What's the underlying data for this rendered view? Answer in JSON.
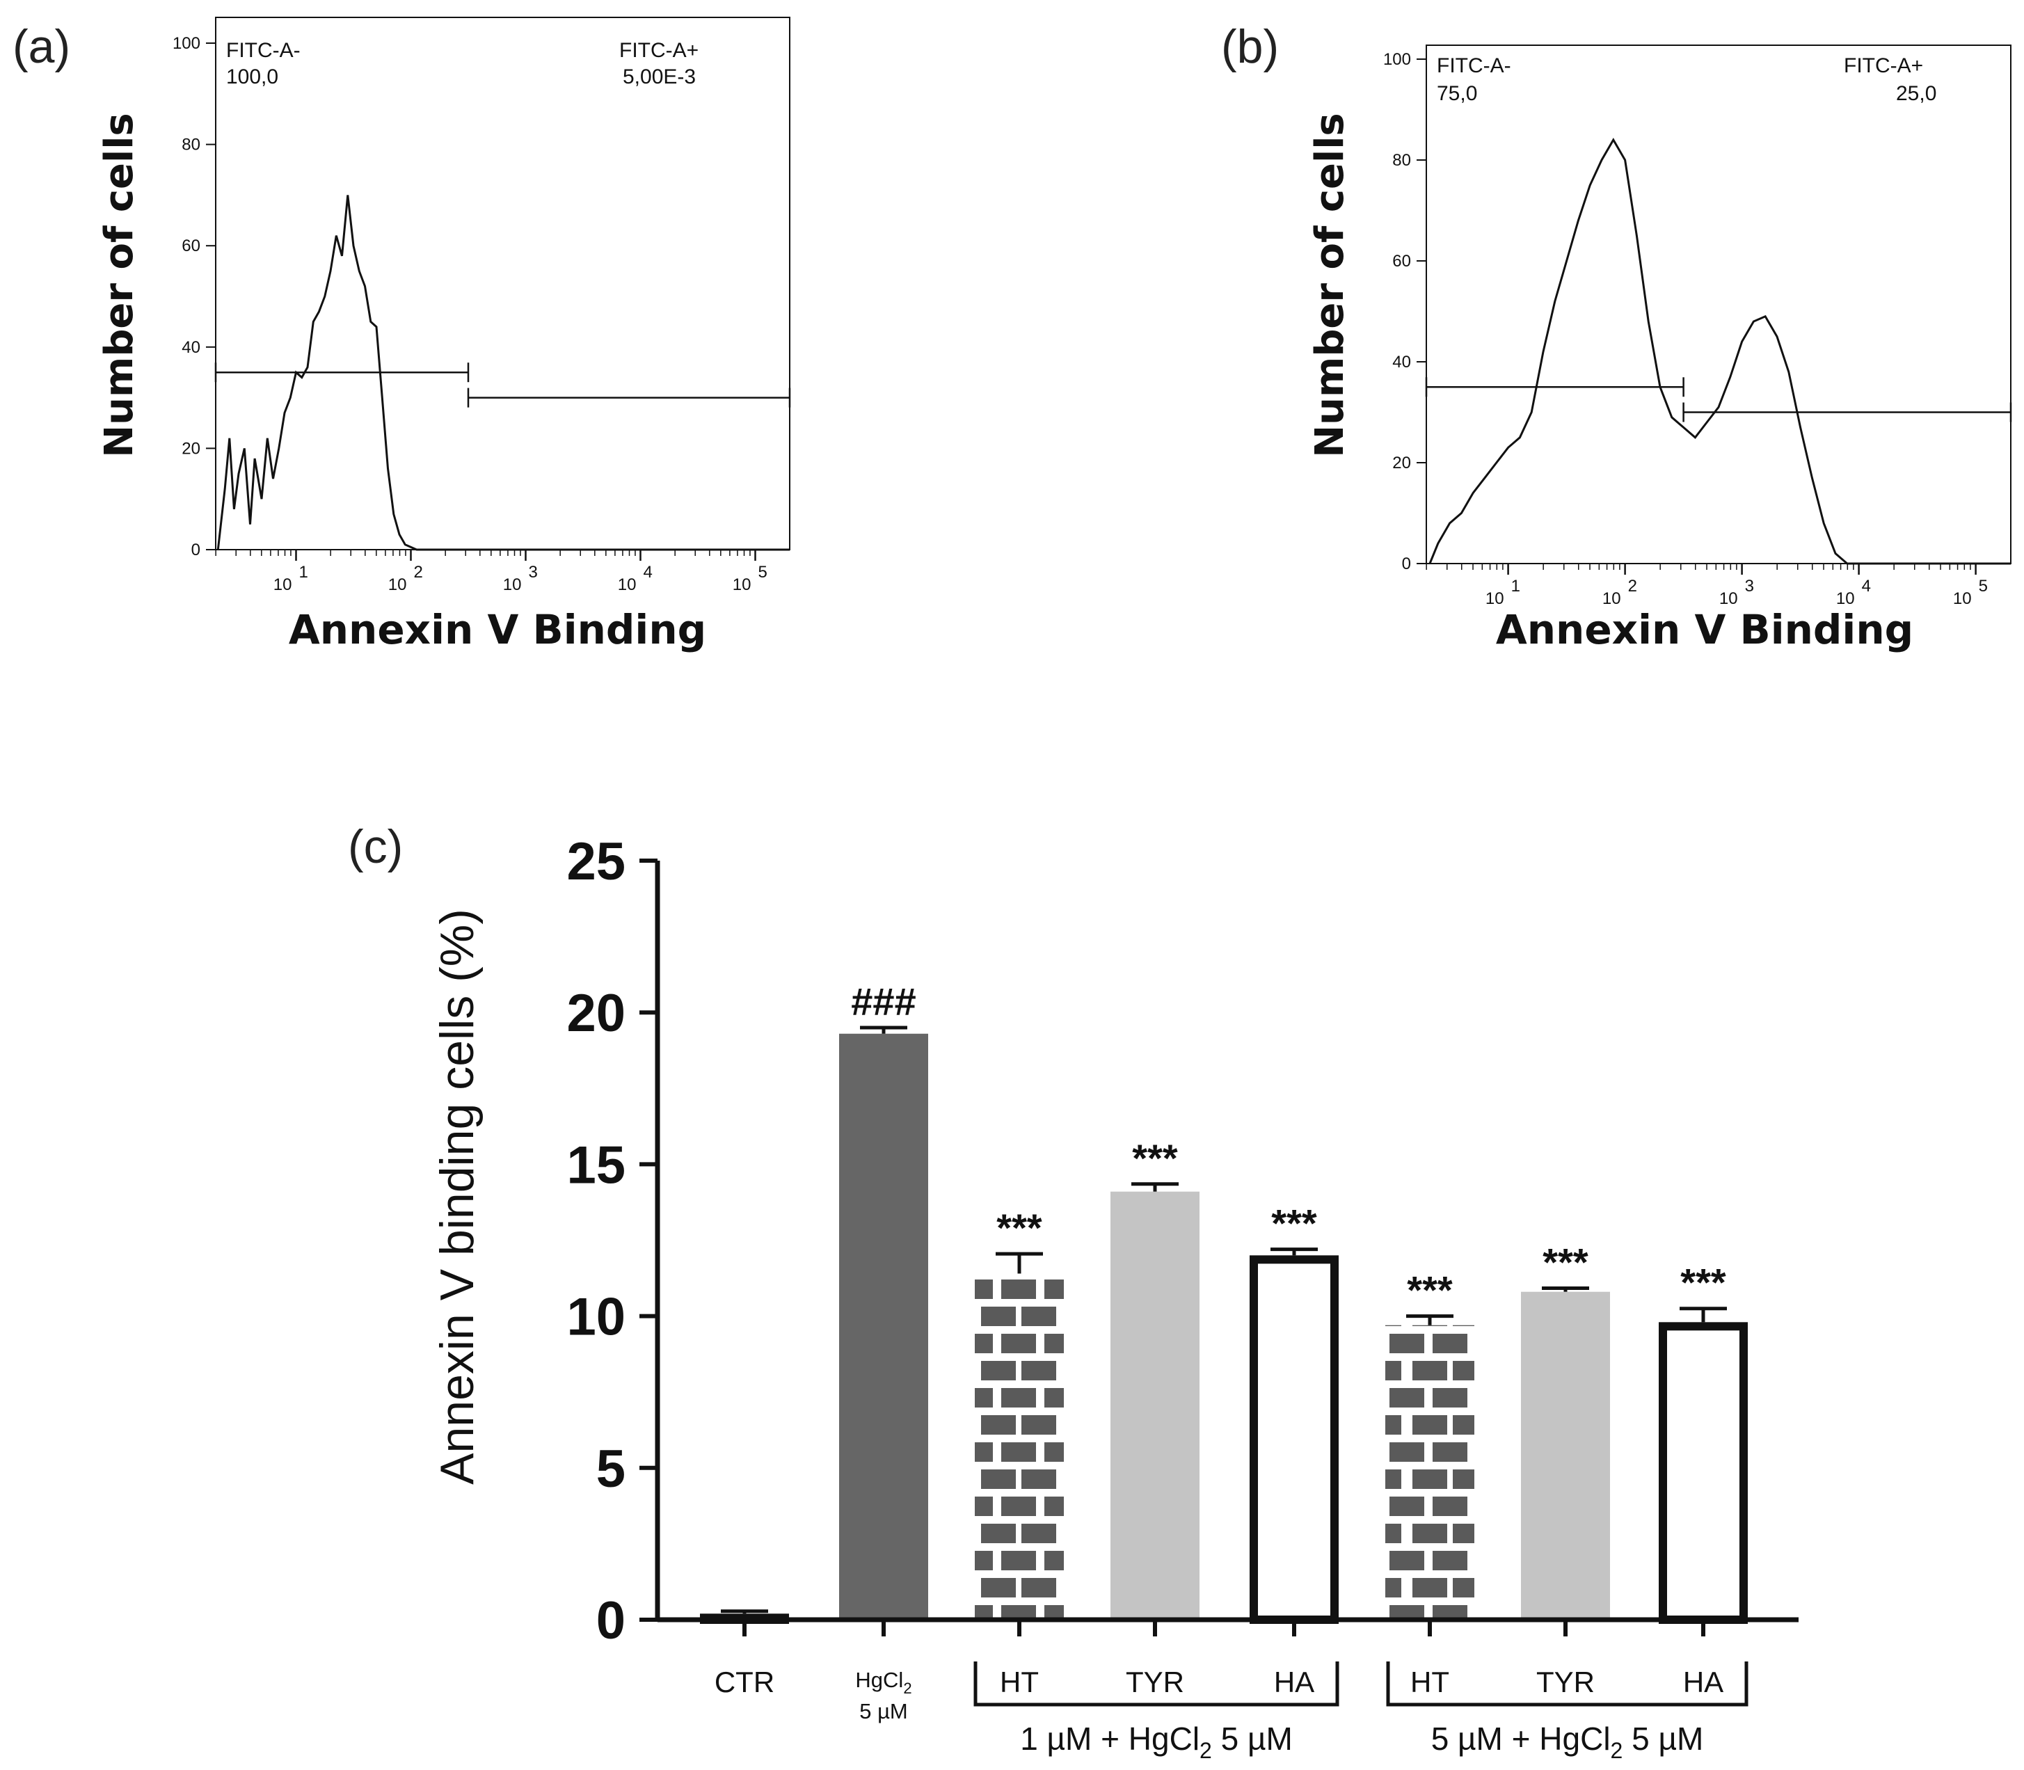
{
  "chart_data": [
    {
      "panel": "(a)",
      "type": "histogram",
      "ylabel": "Number of cells",
      "xlabel": "Annexin V Binding",
      "x_scale": "log",
      "y_ticks": [
        "0",
        "20",
        "40",
        "60",
        "80",
        "100"
      ],
      "x_ticks": [
        {
          "base": "10",
          "exp": "1"
        },
        {
          "base": "10",
          "exp": "2"
        },
        {
          "base": "10",
          "exp": "3"
        },
        {
          "base": "10",
          "exp": "4"
        },
        {
          "base": "10",
          "exp": "5"
        }
      ],
      "ylim": [
        0,
        100
      ],
      "xlim_log10": [
        0.3,
        5.3
      ],
      "gates": [
        {
          "name": "FITC-A-",
          "value": "100,0",
          "from_log10": 0.3,
          "to_log10": 2.5,
          "level": 35
        },
        {
          "name": "FITC-A+",
          "value": "5,00E-3",
          "from_log10": 2.5,
          "to_log10": 5.3,
          "level": 30
        }
      ],
      "curve": [
        [
          0.32,
          0
        ],
        [
          0.38,
          12
        ],
        [
          0.42,
          22
        ],
        [
          0.46,
          8
        ],
        [
          0.5,
          15
        ],
        [
          0.55,
          20
        ],
        [
          0.6,
          5
        ],
        [
          0.64,
          18
        ],
        [
          0.7,
          10
        ],
        [
          0.75,
          22
        ],
        [
          0.8,
          14
        ],
        [
          0.85,
          20
        ],
        [
          0.9,
          27
        ],
        [
          0.95,
          30
        ],
        [
          1.0,
          35
        ],
        [
          1.05,
          34
        ],
        [
          1.1,
          36
        ],
        [
          1.15,
          45
        ],
        [
          1.2,
          47
        ],
        [
          1.25,
          50
        ],
        [
          1.3,
          55
        ],
        [
          1.35,
          62
        ],
        [
          1.4,
          58
        ],
        [
          1.45,
          70
        ],
        [
          1.5,
          60
        ],
        [
          1.55,
          55
        ],
        [
          1.6,
          52
        ],
        [
          1.65,
          45
        ],
        [
          1.7,
          44
        ],
        [
          1.75,
          30
        ],
        [
          1.8,
          16
        ],
        [
          1.85,
          7
        ],
        [
          1.9,
          3
        ],
        [
          1.95,
          1
        ],
        [
          2.05,
          0
        ],
        [
          5.3,
          0
        ]
      ]
    },
    {
      "panel": "(b)",
      "type": "histogram",
      "ylabel": "Number of cells",
      "xlabel": "Annexin V Binding",
      "x_scale": "log",
      "y_ticks": [
        "0",
        "20",
        "40",
        "60",
        "80",
        "100"
      ],
      "x_ticks": [
        {
          "base": "10",
          "exp": "1"
        },
        {
          "base": "10",
          "exp": "2"
        },
        {
          "base": "10",
          "exp": "3"
        },
        {
          "base": "10",
          "exp": "4"
        },
        {
          "base": "10",
          "exp": "5"
        }
      ],
      "ylim": [
        0,
        100
      ],
      "xlim_log10": [
        0.3,
        5.3
      ],
      "gates": [
        {
          "name": "FITC-A-",
          "value": "75,0",
          "from_log10": 0.3,
          "to_log10": 2.5,
          "level": 35
        },
        {
          "name": "FITC-A+",
          "value": "25,0",
          "from_log10": 2.5,
          "to_log10": 5.3,
          "level": 30
        }
      ],
      "curve": [
        [
          0.33,
          0
        ],
        [
          0.4,
          4
        ],
        [
          0.45,
          6
        ],
        [
          0.5,
          8
        ],
        [
          0.6,
          10
        ],
        [
          0.7,
          14
        ],
        [
          0.8,
          17
        ],
        [
          0.9,
          20
        ],
        [
          1.0,
          23
        ],
        [
          1.1,
          25
        ],
        [
          1.2,
          30
        ],
        [
          1.3,
          42
        ],
        [
          1.4,
          52
        ],
        [
          1.5,
          60
        ],
        [
          1.6,
          68
        ],
        [
          1.7,
          75
        ],
        [
          1.8,
          80
        ],
        [
          1.9,
          84
        ],
        [
          2.0,
          80
        ],
        [
          2.1,
          65
        ],
        [
          2.2,
          48
        ],
        [
          2.3,
          35
        ],
        [
          2.4,
          29
        ],
        [
          2.5,
          27
        ],
        [
          2.6,
          25
        ],
        [
          2.7,
          28
        ],
        [
          2.8,
          31
        ],
        [
          2.9,
          37
        ],
        [
          3.0,
          44
        ],
        [
          3.1,
          48
        ],
        [
          3.2,
          49
        ],
        [
          3.3,
          45
        ],
        [
          3.4,
          38
        ],
        [
          3.5,
          27
        ],
        [
          3.6,
          17
        ],
        [
          3.7,
          8
        ],
        [
          3.8,
          2
        ],
        [
          3.9,
          0
        ],
        [
          5.3,
          0
        ]
      ]
    },
    {
      "panel": "(c)",
      "type": "bar",
      "ylabel": "Annexin V binding cells (%)",
      "ylim": [
        0,
        25
      ],
      "y_ticks": [
        "0",
        "5",
        "10",
        "15",
        "20",
        "25"
      ],
      "categories": [
        {
          "label": "CTR",
          "value": 0.2,
          "error": 0.08,
          "fill": "white",
          "sig": ""
        },
        {
          "label": "HgCl",
          "sub": "2",
          "line2": "5 µM",
          "value": 19.3,
          "error": 0.2,
          "fill": "dark",
          "sig": "###"
        },
        {
          "label": "HT",
          "value": 11.4,
          "error": 0.65,
          "fill": "brick",
          "sig": "***"
        },
        {
          "label": "TYR",
          "value": 14.1,
          "error": 0.25,
          "fill": "light",
          "sig": "***"
        },
        {
          "label": "HA",
          "value": 12.0,
          "error": 0.2,
          "fill": "white",
          "sig": "***"
        },
        {
          "label": "HT",
          "value": 9.7,
          "error": 0.3,
          "fill": "brick",
          "sig": "***"
        },
        {
          "label": "TYR",
          "value": 10.8,
          "error": 0.12,
          "fill": "light",
          "sig": "***"
        },
        {
          "label": "HA",
          "value": 9.8,
          "error": 0.45,
          "fill": "white",
          "sig": "***"
        }
      ],
      "groups": [
        {
          "label": "1 µM + HgCl",
          "sub": "2",
          "tail": " 5 µM"
        },
        {
          "label": "5 µM + HgCl",
          "sub": "2",
          "tail": " 5 µM"
        }
      ],
      "colors": {
        "dark": "#666666",
        "light": "#c4c4c4",
        "brick": "#5a5a5a",
        "axis": "#111111"
      }
    }
  ]
}
